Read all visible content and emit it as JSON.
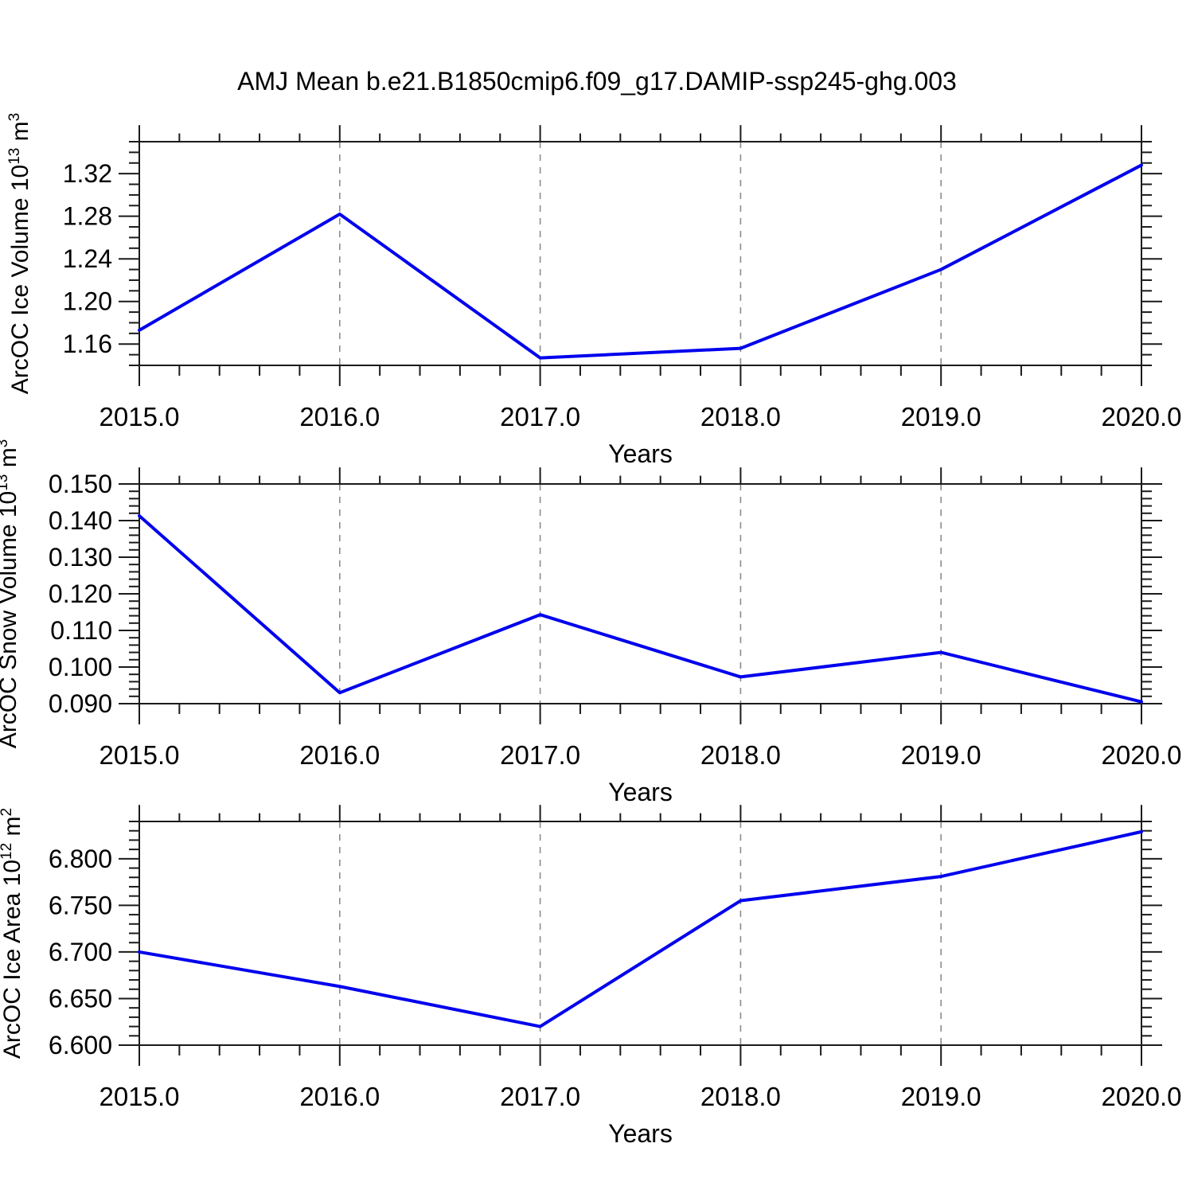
{
  "title": "AMJ Mean b.e21.B1850cmip6.f09_g17.DAMIP-ssp245-ghg.003",
  "colors": {
    "line": "#0000EE",
    "grid": "#8C8C8C",
    "axis": "#1A1A1A",
    "text": "#000000"
  },
  "x_axis": {
    "label": "Years",
    "min": 2015,
    "max": 2020,
    "major_ticks": [
      2015,
      2016,
      2017,
      2018,
      2019,
      2020
    ],
    "tick_labels": [
      "2015.0",
      "2016.0",
      "2017.0",
      "2018.0",
      "2019.0",
      "2020.0"
    ],
    "minor_step": 0.2,
    "grid_years": [
      2016,
      2017,
      2018,
      2019
    ]
  },
  "chart_data": [
    {
      "type": "line",
      "id": "ice-volume",
      "ylabel_plain": "ArcOC Ice Volume 10^13 m^3",
      "ylabel_segments": [
        {
          "t": "ArcOC Ice Volume 10"
        },
        {
          "t": "13",
          "sup": true
        },
        {
          "t": " m"
        },
        {
          "t": "3",
          "sup": true
        }
      ],
      "xlabel": "Years",
      "x": [
        2015,
        2016,
        2017,
        2018,
        2019,
        2020
      ],
      "values": [
        1.173,
        1.282,
        1.147,
        1.156,
        1.23,
        1.328
      ],
      "ylim": [
        1.14,
        1.35
      ],
      "yticks": [
        {
          "value": 1.16,
          "label": "1.16"
        },
        {
          "value": 1.2,
          "label": "1.20"
        },
        {
          "value": 1.24,
          "label": "1.24"
        },
        {
          "value": 1.28,
          "label": "1.28"
        },
        {
          "value": 1.32,
          "label": "1.32"
        }
      ],
      "y_minor_step": 0.01,
      "grid": "vertical-dashed",
      "legend": "none"
    },
    {
      "type": "line",
      "id": "snow-volume",
      "ylabel_plain": "ArcOC Snow Volume 10^13 m^3",
      "ylabel_segments": [
        {
          "t": "ArcOC Snow Volume 10"
        },
        {
          "t": "13",
          "sup": true
        },
        {
          "t": " m"
        },
        {
          "t": "3",
          "sup": true
        }
      ],
      "xlabel": "Years",
      "x": [
        2015,
        2016,
        2017,
        2018,
        2019,
        2020
      ],
      "values": [
        0.1413,
        0.093,
        0.1143,
        0.0973,
        0.104,
        0.0905
      ],
      "ylim": [
        0.09,
        0.15
      ],
      "yticks": [
        {
          "value": 0.09,
          "label": "0.090"
        },
        {
          "value": 0.1,
          "label": "0.100"
        },
        {
          "value": 0.11,
          "label": "0.110"
        },
        {
          "value": 0.12,
          "label": "0.120"
        },
        {
          "value": 0.13,
          "label": "0.130"
        },
        {
          "value": 0.14,
          "label": "0.140"
        },
        {
          "value": 0.15,
          "label": "0.150"
        }
      ],
      "y_minor_step": 0.002,
      "grid": "vertical-dashed",
      "legend": "none"
    },
    {
      "type": "line",
      "id": "ice-area",
      "ylabel_plain": "ArcOC Ice Area 10^12 m^2",
      "ylabel_segments": [
        {
          "t": "ArcOC Ice Area 10"
        },
        {
          "t": "12",
          "sup": true
        },
        {
          "t": " m"
        },
        {
          "t": "2",
          "sup": true
        }
      ],
      "xlabel": "Years",
      "x": [
        2015,
        2016,
        2017,
        2018,
        2019,
        2020
      ],
      "values": [
        6.7,
        6.663,
        6.62,
        6.755,
        6.781,
        6.829
      ],
      "ylim": [
        6.6,
        6.84
      ],
      "yticks": [
        {
          "value": 6.6,
          "label": "6.600"
        },
        {
          "value": 6.65,
          "label": "6.650"
        },
        {
          "value": 6.7,
          "label": "6.700"
        },
        {
          "value": 6.75,
          "label": "6.750"
        },
        {
          "value": 6.8,
          "label": "6.800"
        }
      ],
      "y_minor_step": 0.01,
      "grid": "vertical-dashed",
      "legend": "none"
    }
  ]
}
